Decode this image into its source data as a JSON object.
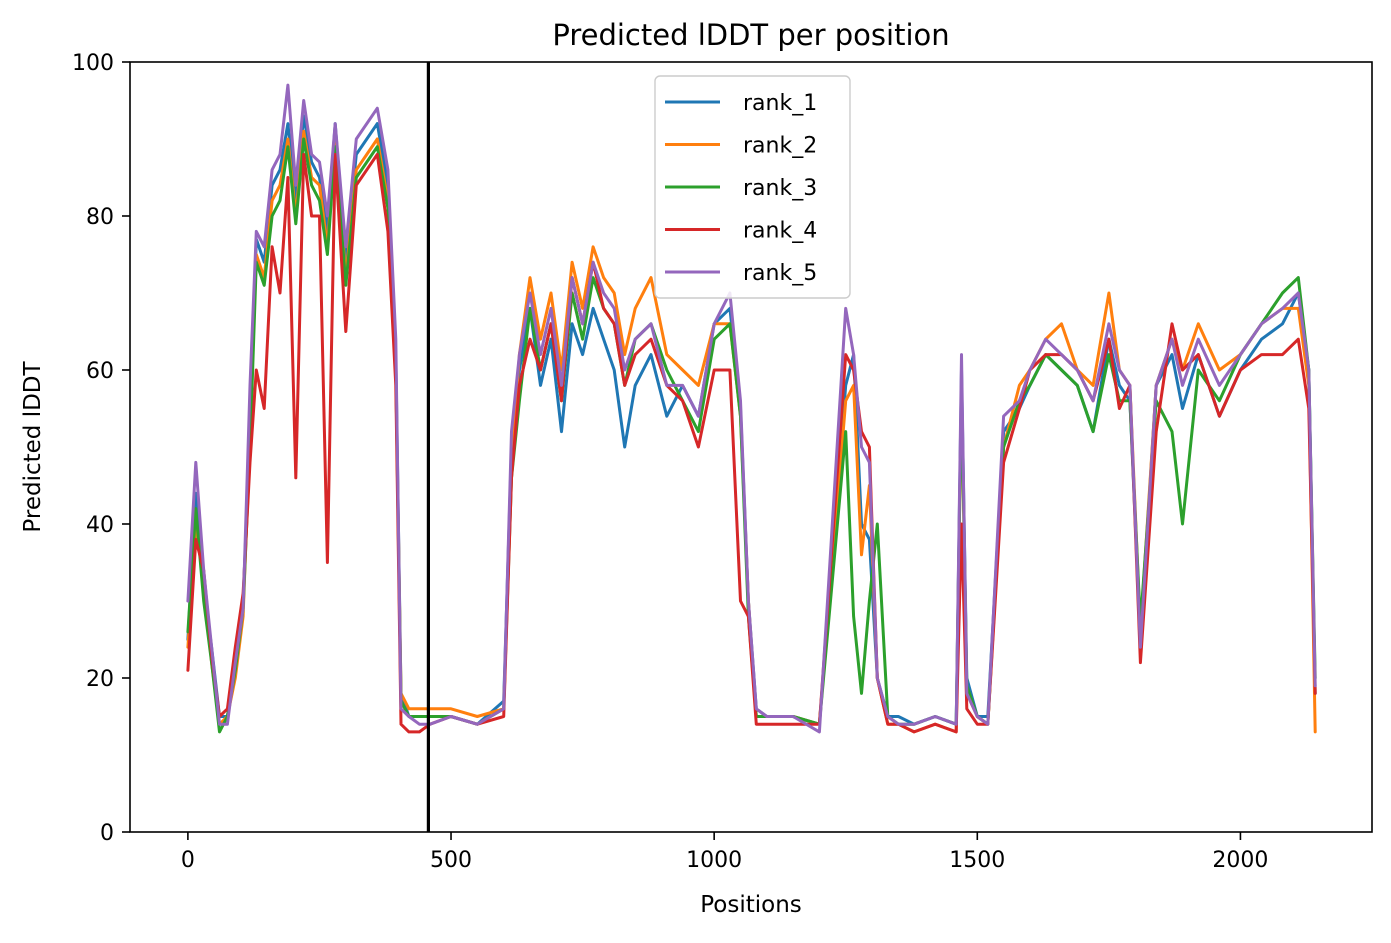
{
  "chart_data": {
    "type": "line",
    "title": "Predicted lDDT per position",
    "xlabel": "Positions",
    "ylabel": "Predicted lDDT",
    "xlim": [
      -110,
      2250
    ],
    "ylim": [
      0,
      100
    ],
    "xticks": [
      0,
      500,
      1000,
      1500,
      2000
    ],
    "yticks": [
      0,
      20,
      40,
      60,
      80,
      100
    ],
    "grid": false,
    "legend_position": "top-center",
    "vline": {
      "x": 457,
      "color": "#000000"
    },
    "x": [
      0,
      15,
      30,
      45,
      60,
      75,
      90,
      105,
      118,
      130,
      145,
      160,
      175,
      190,
      205,
      220,
      235,
      250,
      265,
      280,
      300,
      320,
      340,
      360,
      380,
      395,
      405,
      420,
      440,
      460,
      500,
      550,
      600,
      615,
      630,
      650,
      670,
      690,
      710,
      730,
      750,
      770,
      790,
      810,
      830,
      850,
      880,
      910,
      940,
      970,
      1000,
      1030,
      1050,
      1065,
      1080,
      1100,
      1150,
      1200,
      1250,
      1265,
      1280,
      1295,
      1310,
      1330,
      1350,
      1380,
      1420,
      1460,
      1470,
      1480,
      1500,
      1520,
      1550,
      1580,
      1600,
      1630,
      1660,
      1690,
      1720,
      1750,
      1770,
      1790,
      1810,
      1840,
      1870,
      1890,
      1920,
      1960,
      2000,
      2040,
      2080,
      2110,
      2130,
      2142
    ],
    "series": [
      {
        "name": "rank_1",
        "color": "#1f77b4",
        "values": [
          25,
          44,
          32,
          24,
          15,
          15,
          22,
          30,
          52,
          77,
          74,
          84,
          86,
          92,
          82,
          93,
          87,
          85,
          78,
          92,
          74,
          88,
          90,
          92,
          84,
          62,
          18,
          15,
          15,
          15,
          15,
          14,
          17,
          50,
          60,
          68,
          58,
          64,
          52,
          66,
          62,
          68,
          64,
          60,
          50,
          58,
          62,
          54,
          58,
          54,
          66,
          68,
          55,
          30,
          16,
          15,
          15,
          14,
          58,
          62,
          40,
          38,
          20,
          15,
          15,
          14,
          15,
          14,
          60,
          20,
          15,
          15,
          52,
          55,
          58,
          62,
          60,
          58,
          52,
          64,
          58,
          56,
          25,
          58,
          62,
          55,
          62,
          54,
          60,
          64,
          66,
          70,
          60,
          18
        ]
      },
      {
        "name": "rank_2",
        "color": "#ff7f0e",
        "values": [
          24,
          40,
          33,
          22,
          14,
          15,
          20,
          28,
          52,
          75,
          72,
          82,
          84,
          90,
          80,
          91,
          85,
          84,
          76,
          90,
          72,
          86,
          88,
          90,
          82,
          60,
          18,
          16,
          16,
          16,
          16,
          15,
          16,
          48,
          62,
          72,
          64,
          70,
          60,
          74,
          68,
          76,
          72,
          70,
          62,
          68,
          72,
          62,
          60,
          58,
          66,
          66,
          54,
          30,
          15,
          15,
          15,
          14,
          56,
          58,
          36,
          45,
          20,
          14,
          14,
          13,
          14,
          13,
          58,
          18,
          15,
          14,
          50,
          58,
          60,
          64,
          66,
          60,
          58,
          70,
          60,
          58,
          26,
          58,
          64,
          60,
          66,
          60,
          62,
          66,
          68,
          68,
          58,
          13
        ]
      },
      {
        "name": "rank_3",
        "color": "#2ca02c",
        "values": [
          26,
          42,
          30,
          22,
          13,
          15,
          21,
          29,
          50,
          74,
          71,
          80,
          82,
          89,
          79,
          90,
          84,
          82,
          75,
          89,
          71,
          85,
          87,
          89,
          81,
          60,
          17,
          15,
          15,
          15,
          15,
          14,
          16,
          46,
          56,
          68,
          60,
          66,
          56,
          70,
          64,
          72,
          68,
          66,
          58,
          64,
          66,
          60,
          56,
          52,
          64,
          66,
          54,
          28,
          15,
          15,
          15,
          14,
          52,
          28,
          18,
          30,
          40,
          15,
          14,
          14,
          15,
          14,
          58,
          19,
          15,
          14,
          50,
          56,
          58,
          62,
          60,
          58,
          52,
          62,
          56,
          56,
          27,
          56,
          52,
          40,
          60,
          56,
          62,
          66,
          70,
          72,
          60,
          20
        ]
      },
      {
        "name": "rank_4",
        "color": "#d62728",
        "values": [
          21,
          38,
          34,
          23,
          15,
          16,
          24,
          31,
          48,
          60,
          55,
          76,
          70,
          85,
          46,
          88,
          80,
          80,
          35,
          88,
          65,
          84,
          86,
          88,
          78,
          58,
          14,
          13,
          13,
          14,
          15,
          14,
          15,
          46,
          58,
          64,
          60,
          66,
          56,
          72,
          66,
          74,
          68,
          66,
          58,
          62,
          64,
          58,
          56,
          50,
          60,
          60,
          30,
          28,
          14,
          14,
          14,
          14,
          62,
          60,
          52,
          50,
          20,
          14,
          14,
          13,
          14,
          13,
          40,
          16,
          14,
          14,
          48,
          55,
          60,
          62,
          62,
          60,
          56,
          64,
          55,
          58,
          22,
          52,
          66,
          60,
          62,
          54,
          60,
          62,
          62,
          64,
          55,
          18
        ]
      },
      {
        "name": "rank_5",
        "color": "#9467bd",
        "values": [
          30,
          48,
          34,
          24,
          14,
          14,
          22,
          29,
          58,
          78,
          76,
          86,
          88,
          97,
          84,
          95,
          88,
          87,
          80,
          92,
          76,
          90,
          92,
          94,
          86,
          64,
          16,
          15,
          14,
          14,
          15,
          14,
          16,
          52,
          62,
          70,
          62,
          68,
          58,
          72,
          66,
          74,
          70,
          68,
          60,
          64,
          66,
          58,
          58,
          54,
          66,
          70,
          56,
          30,
          16,
          15,
          15,
          13,
          68,
          62,
          50,
          48,
          20,
          15,
          14,
          14,
          15,
          14,
          62,
          18,
          15,
          14,
          54,
          56,
          60,
          64,
          62,
          60,
          56,
          66,
          60,
          58,
          24,
          58,
          64,
          58,
          64,
          58,
          62,
          66,
          68,
          70,
          60,
          19
        ]
      }
    ]
  }
}
